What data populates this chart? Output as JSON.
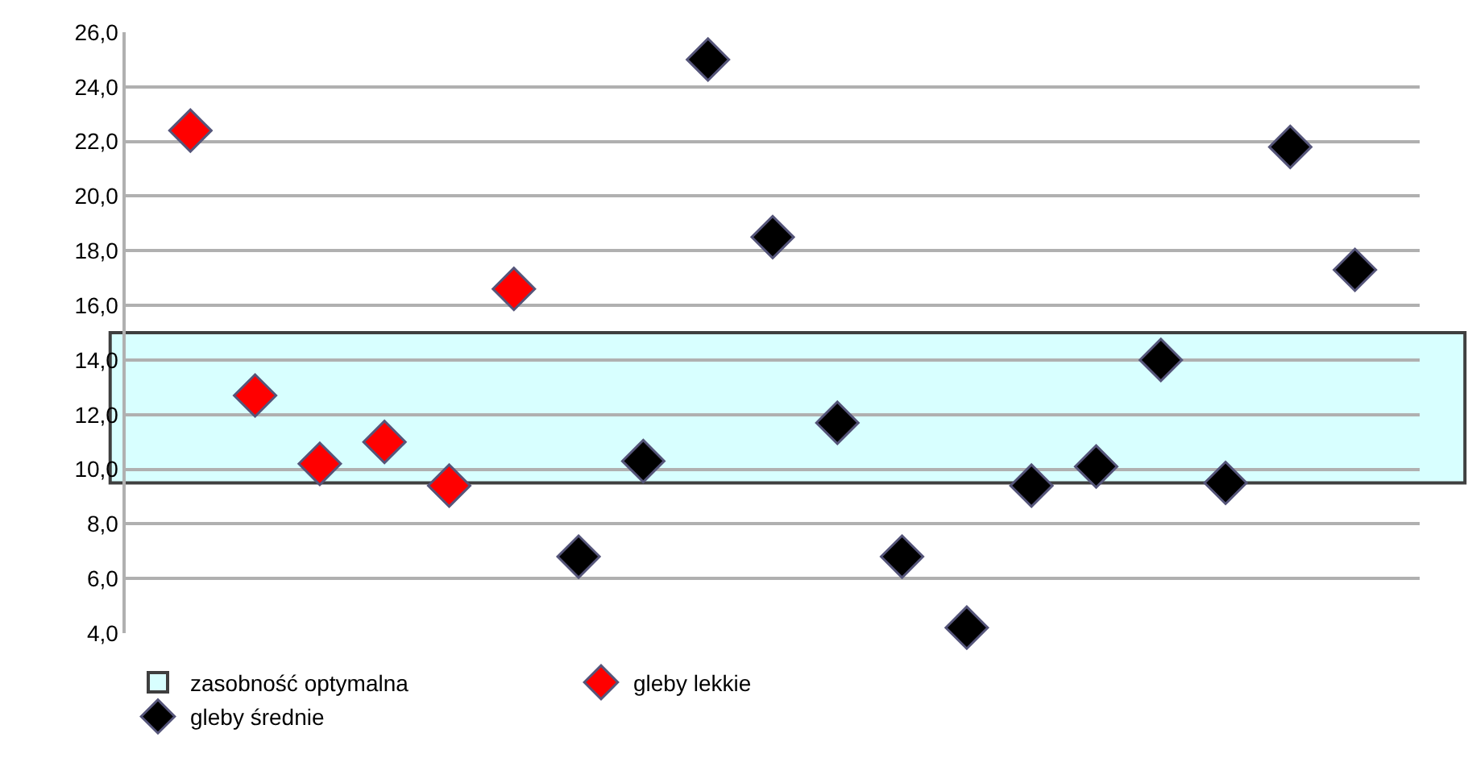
{
  "chart_data": {
    "type": "scatter",
    "categories": [
      null,
      null,
      null,
      null,
      null,
      null,
      null,
      null,
      null,
      null,
      null,
      null,
      null,
      null,
      null,
      null,
      null,
      null,
      null
    ],
    "series": [
      {
        "name": "gleby lekkie",
        "color": "#ff0000",
        "values": [
          22.4,
          12.7,
          10.2,
          11.0,
          9.4,
          16.6,
          null,
          null,
          null,
          null,
          null,
          null,
          null,
          null,
          null,
          null,
          null,
          null,
          null
        ]
      },
      {
        "name": "gleby średnie",
        "color": "#000000",
        "values": [
          null,
          null,
          null,
          null,
          null,
          null,
          6.8,
          10.3,
          25.0,
          18.5,
          11.7,
          6.8,
          4.2,
          9.4,
          10.1,
          14.0,
          9.5,
          21.8,
          17.3
        ]
      }
    ],
    "ylim": [
      4,
      26
    ],
    "yticks": [
      {
        "value": 4,
        "label": "4,0"
      },
      {
        "value": 6,
        "label": "6,0"
      },
      {
        "value": 8,
        "label": "8,0"
      },
      {
        "value": 10,
        "label": "10,0"
      },
      {
        "value": 12,
        "label": "12,0"
      },
      {
        "value": 14,
        "label": "14,0"
      },
      {
        "value": 16,
        "label": "16,0"
      },
      {
        "value": 18,
        "label": "18,0"
      },
      {
        "value": 20,
        "label": "20,0"
      },
      {
        "value": 22,
        "label": "22,0"
      },
      {
        "value": 24,
        "label": "24,0"
      },
      {
        "value": 26,
        "label": "26,0"
      }
    ],
    "bands": [
      {
        "axis": "y",
        "from": 9.5,
        "to": 15.0,
        "label": "zasobność optymalna",
        "color": "#ccffff"
      }
    ],
    "grid": "y",
    "legend": "bottom",
    "marker": "diamond"
  }
}
